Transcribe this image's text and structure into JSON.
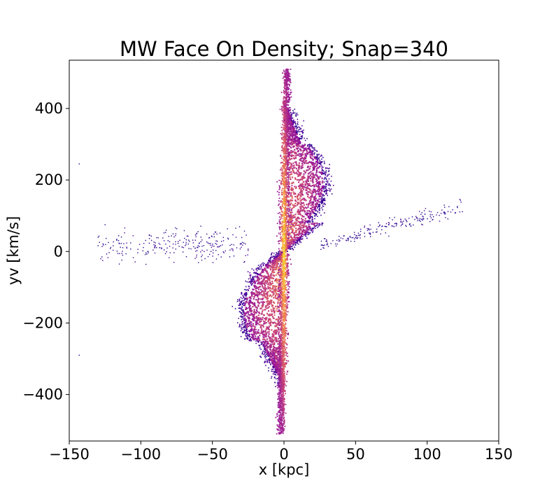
{
  "chart_data": {
    "type": "heatmap",
    "title": "MW Face On Density; Snap=340",
    "xlabel": "x [kpc]",
    "ylabel": "yv [km/s]",
    "xlim": [
      -150,
      150
    ],
    "ylim": [
      -530,
      535
    ],
    "xticks": [
      -150,
      -100,
      -50,
      0,
      50,
      100,
      150
    ],
    "yticks": [
      -400,
      -200,
      0,
      200,
      400
    ],
    "xtick_labels": [
      "−150",
      "−100",
      "−50",
      "0",
      "50",
      "100",
      "150"
    ],
    "ytick_labels": [
      "−400",
      "−200",
      "0",
      "200",
      "400"
    ],
    "colormap": "plasma",
    "grid": false,
    "colors": {
      "background": "#ffffff",
      "cmap_low": "#0d0887",
      "cmap_mid_low": "#7e03a8",
      "cmap_mid": "#cc4778",
      "cmap_mid_high": "#f89540",
      "cmap_high": "#f0f921"
    },
    "features": [
      {
        "name": "central ridge",
        "x_center": 0,
        "y_range": [
          -500,
          515
        ],
        "peak_density": "high"
      },
      {
        "name": "upper lobe",
        "x_range": [
          0,
          28
        ],
        "y_range": [
          50,
          300
        ]
      },
      {
        "name": "lower lobe",
        "x_range": [
          -28,
          0
        ],
        "y_range": [
          -320,
          -50
        ]
      },
      {
        "name": "tidal stream left",
        "x_range": [
          -130,
          -25
        ],
        "y_range": [
          -30,
          70
        ]
      },
      {
        "name": "tidal stream right",
        "x_range": [
          25,
          125
        ],
        "y_range": [
          20,
          135
        ]
      }
    ]
  }
}
